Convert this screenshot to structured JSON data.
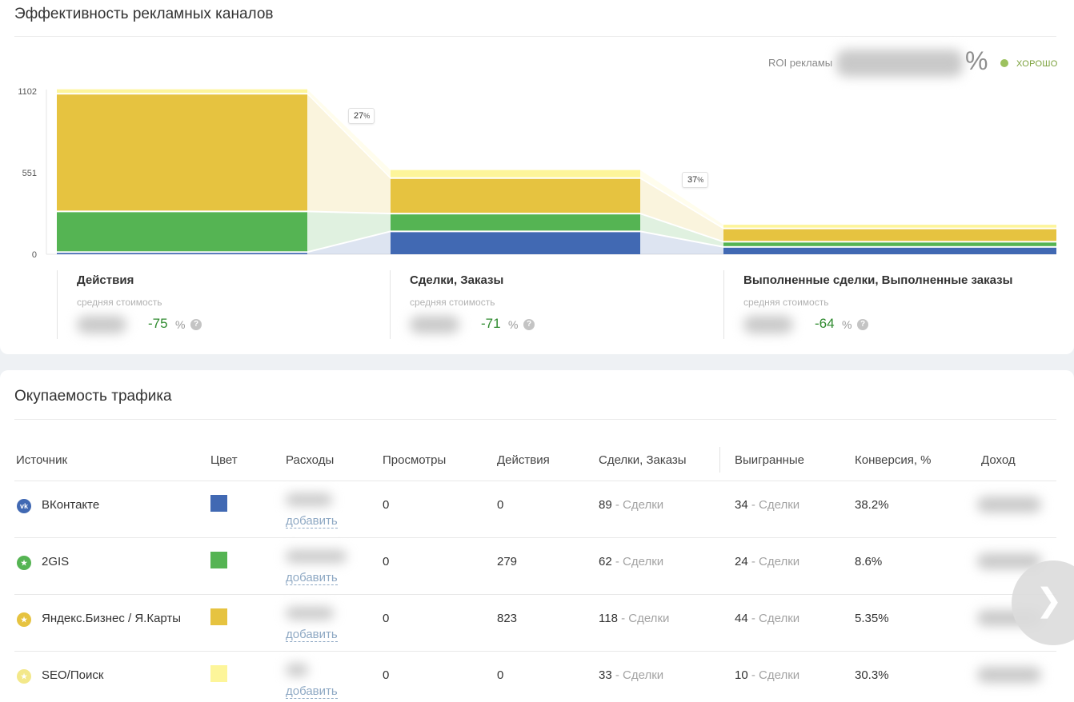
{
  "ad_channels": {
    "title": "Эффективность рекламных каналов",
    "roi": {
      "label": "ROI рекламы",
      "unit": "%",
      "status": "ХОРОШО",
      "status_color": "#9cc15e"
    },
    "conversions": [
      {
        "value": "27",
        "unit": "%"
      },
      {
        "value": "37",
        "unit": "%"
      }
    ],
    "stages": [
      {
        "title": "Действия",
        "subtitle": "средняя стоимость",
        "change": "-75",
        "unit": "%",
        "help": "?"
      },
      {
        "title": "Сделки, Заказы",
        "subtitle": "средняя стоимость",
        "change": "-71",
        "unit": "%",
        "help": "?"
      },
      {
        "title": "Выполненные сделки, Выполненные заказы",
        "subtitle": "средняя стоимость",
        "change": "-64",
        "unit": "%",
        "help": "?"
      }
    ]
  },
  "chart_data": {
    "type": "bar",
    "stacked": true,
    "categories": [
      "Действия",
      "Сделки, Заказы",
      "Выполненные сделки, Выполненные заказы"
    ],
    "yticks": [
      "1102",
      "551",
      "0"
    ],
    "ylim": [
      0,
      1102
    ],
    "series": [
      {
        "name": "ВКонтакте",
        "color": "#4169b3",
        "values": [
          20,
          160,
          55
        ]
      },
      {
        "name": "2GIS",
        "color": "#55b453",
        "values": [
          275,
          120,
          35
        ]
      },
      {
        "name": "Яндекс.Бизнес / Я.Карты",
        "color": "#e6c340",
        "values": [
          795,
          240,
          90
        ]
      },
      {
        "name": "SEO/Поиск",
        "color": "#fdf59a",
        "values": [
          35,
          60,
          30
        ]
      }
    ]
  },
  "traffic": {
    "title": "Окупаемость трафика",
    "columns": [
      "Источник",
      "Цвет",
      "Расходы",
      "Просмотры",
      "Действия",
      "Сделки, Заказы",
      "Выигранные",
      "Конверсия, %",
      "Доход"
    ],
    "add_label": "добавить",
    "deals_suffix": "- Сделки",
    "rows": [
      {
        "source": "ВКонтакте",
        "icon": "vk-icon",
        "icon_text": "vk",
        "icon_color": "#4169b3",
        "color": "#4169b3",
        "views": "0",
        "actions": "0",
        "deals": "89",
        "won": "34",
        "conversion": "38.2%"
      },
      {
        "source": "2GIS",
        "icon": "star-icon",
        "icon_text": "★",
        "icon_color": "#55b453",
        "color": "#55b453",
        "views": "0",
        "actions": "279",
        "deals": "62",
        "won": "24",
        "conversion": "8.6%"
      },
      {
        "source": "Яндекс.Бизнес / Я.Карты",
        "icon": "star-icon",
        "icon_text": "★",
        "icon_color": "#e6c340",
        "color": "#e6c340",
        "views": "0",
        "actions": "823",
        "deals": "118",
        "won": "44",
        "conversion": "5.35%"
      },
      {
        "source": "SEO/Поиск",
        "icon": "star-icon",
        "icon_text": "★",
        "icon_color": "#f3e88a",
        "color": "#fdf59a",
        "views": "0",
        "actions": "0",
        "deals": "33",
        "won": "10",
        "conversion": "30.3%"
      }
    ]
  },
  "next_button": {
    "icon": "chevron-right-icon",
    "glyph": "❯"
  }
}
